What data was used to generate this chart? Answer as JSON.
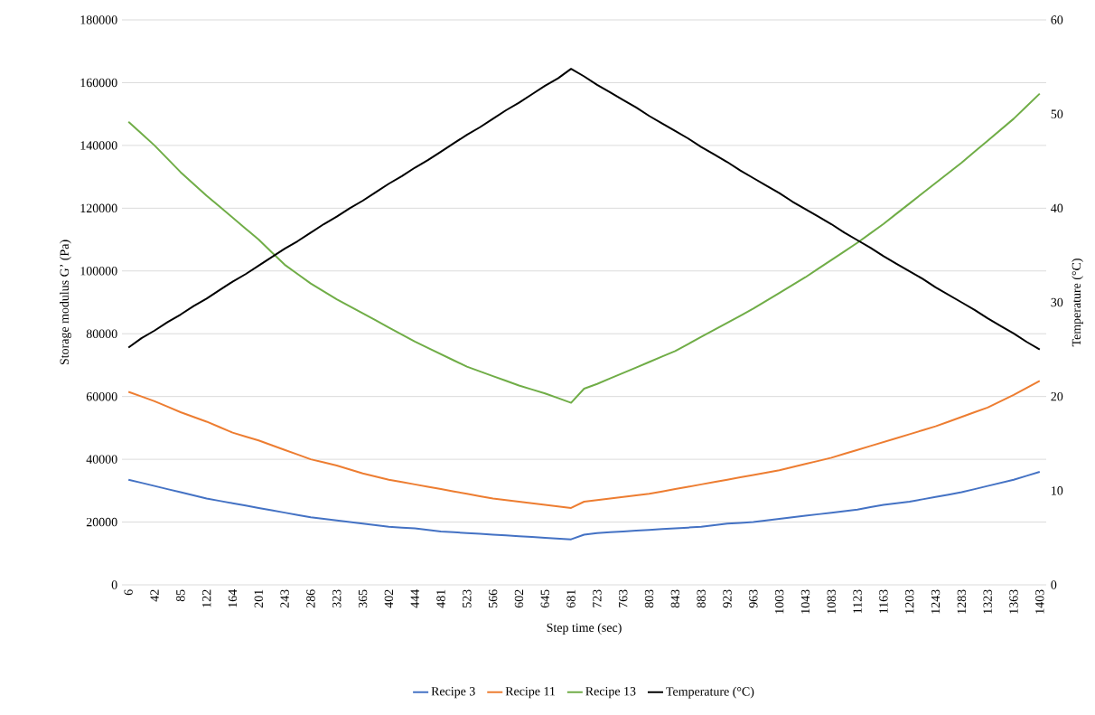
{
  "chart_data": {
    "type": "line",
    "xlabel": "Step time (sec)",
    "ylabel": "Storage modulus G’ (Pa)",
    "y2label": "Temperature (°C)",
    "categories": [
      "6",
      null,
      "42",
      null,
      "85",
      null,
      "122",
      null,
      "164",
      null,
      "201",
      null,
      "243",
      null,
      "286",
      null,
      "323",
      null,
      "365",
      null,
      "402",
      null,
      "444",
      null,
      "481",
      null,
      "523",
      null,
      "566",
      null,
      "602",
      null,
      "645",
      null,
      "681",
      null,
      "723",
      null,
      "763",
      null,
      "803",
      null,
      "843",
      null,
      "883",
      null,
      "923",
      null,
      "963",
      null,
      "1003",
      null,
      "1043",
      null,
      "1083",
      null,
      "1123",
      null,
      "1163",
      null,
      "1203",
      null,
      "1243",
      null,
      "1283",
      null,
      "1323",
      null,
      "1363",
      null,
      "1403"
    ],
    "series": [
      {
        "name": "Recipe 3",
        "color": "#4472c4",
        "values": [
          33500,
          32500,
          31500,
          30500,
          29500,
          28500,
          27500,
          26750,
          26000,
          25250,
          24500,
          23750,
          23000,
          22250,
          21500,
          21000,
          20500,
          20000,
          19500,
          19000,
          18500,
          18250,
          18000,
          17500,
          17000,
          16750,
          16500,
          16250,
          16000,
          15750,
          15500,
          15250,
          15000,
          14750,
          14500,
          16000,
          16500,
          16750,
          17000,
          17250,
          17500,
          17750,
          18000,
          18250,
          18500,
          19000,
          19500,
          19750,
          20000,
          20500,
          21000,
          21500,
          22000,
          22500,
          23000,
          23500,
          24000,
          24750,
          25500,
          26000,
          26500,
          27250,
          28000,
          28750,
          29500,
          30500,
          31500,
          32500,
          33500,
          34750,
          36000
        ]
      },
      {
        "name": "Recipe 11",
        "color": "#ed7d31",
        "values": [
          61500,
          60000,
          58500,
          56750,
          55000,
          53500,
          52000,
          50250,
          48500,
          47250,
          46000,
          44500,
          43000,
          41500,
          40000,
          39000,
          38000,
          36750,
          35500,
          34500,
          33500,
          32750,
          32000,
          31250,
          30500,
          29750,
          29000,
          28250,
          27500,
          27000,
          26500,
          26000,
          25500,
          25000,
          24500,
          26500,
          27000,
          27500,
          28000,
          28500,
          29000,
          29750,
          30500,
          31250,
          32000,
          32750,
          33500,
          34250,
          35000,
          35750,
          36500,
          37500,
          38500,
          39500,
          40500,
          41750,
          43000,
          44250,
          45500,
          46750,
          48000,
          49250,
          50500,
          52000,
          53500,
          55000,
          56500,
          58500,
          60500,
          62750,
          65000
        ]
      },
      {
        "name": "Recipe 13",
        "color": "#70ad47",
        "values": [
          147500,
          143750,
          140000,
          135750,
          131500,
          127750,
          124000,
          120500,
          117000,
          113500,
          110000,
          106000,
          102000,
          99000,
          96000,
          93500,
          91000,
          88750,
          86500,
          84250,
          82000,
          79750,
          77500,
          75500,
          73500,
          71500,
          69500,
          68000,
          66500,
          65000,
          63500,
          62250,
          61000,
          59500,
          58000,
          62500,
          64000,
          65750,
          67500,
          69250,
          71000,
          72750,
          74500,
          76750,
          79000,
          81250,
          83500,
          85750,
          88000,
          90500,
          93000,
          95500,
          98000,
          100750,
          103500,
          106250,
          109000,
          112000,
          115000,
          118250,
          121500,
          124750,
          128000,
          131250,
          134500,
          138000,
          141500,
          145000,
          148500,
          152500,
          156500
        ]
      },
      {
        "name": "Temperature (°C)",
        "color": "#000000",
        "axis": "y2",
        "values": [
          25.2,
          26.2,
          27.0,
          27.9,
          28.7,
          29.6,
          30.4,
          31.3,
          32.2,
          33.0,
          33.9,
          34.8,
          35.7,
          36.5,
          37.4,
          38.3,
          39.1,
          40.0,
          40.8,
          41.7,
          42.6,
          43.4,
          44.3,
          45.1,
          46.0,
          46.9,
          47.8,
          48.6,
          49.5,
          50.4,
          51.2,
          52.1,
          53.0,
          53.8,
          54.8,
          54.0,
          53.1,
          52.3,
          51.5,
          50.7,
          49.8,
          49.0,
          48.2,
          47.4,
          46.5,
          45.7,
          44.9,
          44.0,
          43.2,
          42.4,
          41.6,
          40.7,
          39.9,
          39.1,
          38.3,
          37.4,
          36.6,
          35.8,
          34.9,
          34.1,
          33.3,
          32.5,
          31.6,
          30.8,
          30.0,
          29.2,
          28.3,
          27.5,
          26.7,
          25.8,
          25.0
        ]
      }
    ],
    "ylim": [
      0,
      180000
    ],
    "yticks": [
      0,
      20000,
      40000,
      60000,
      80000,
      100000,
      120000,
      140000,
      160000,
      180000
    ],
    "y2lim": [
      0,
      60
    ],
    "y2ticks": [
      0,
      10,
      20,
      30,
      40,
      50,
      60
    ],
    "grid": "y",
    "legend": "bottom",
    "marker": "none"
  }
}
